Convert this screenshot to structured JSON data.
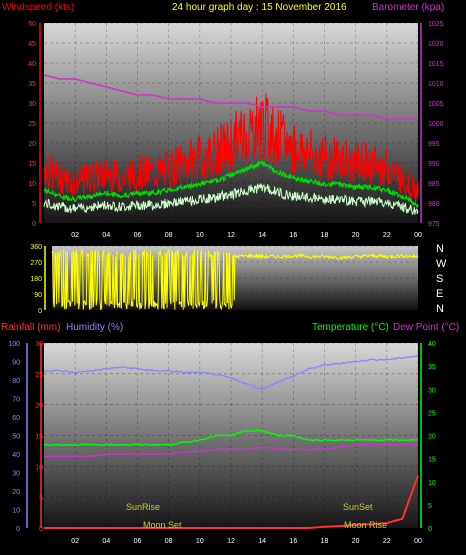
{
  "header": {
    "wind_label": "Windspeed (kts)",
    "title": "24 hour graph day : 15 November 2016",
    "baro_label": "Barometer (kpa)"
  },
  "colors": {
    "wind": "#ff0000",
    "gust_avg": "#00dd00",
    "wind_light": "#ccffcc",
    "baro": "#cc33cc",
    "direction": "#ffff00",
    "rain": "#ff3030",
    "humidity": "#8888ff",
    "temperature": "#00ff00",
    "dewpoint": "#cc33cc",
    "sunmoon": "#cccc33"
  },
  "x_ticks": [
    "02",
    "04",
    "06",
    "08",
    "10",
    "12",
    "14",
    "16",
    "18",
    "20",
    "22",
    "00"
  ],
  "chart_data": [
    {
      "type": "line",
      "title": "24 hour graph day : 15 November 2016",
      "y_left": {
        "label": "Windspeed (kts)",
        "ylim": [
          0,
          50
        ],
        "ticks": [
          0,
          5,
          10,
          15,
          20,
          25,
          30,
          35,
          40,
          45,
          50
        ]
      },
      "y_right": {
        "label": "Barometer (kpa)",
        "ylim": [
          975,
          1025
        ],
        "ticks": [
          975,
          980,
          985,
          990,
          995,
          1000,
          1005,
          1010,
          1015,
          1020,
          1025
        ]
      },
      "x": [
        0,
        1,
        2,
        3,
        4,
        5,
        6,
        7,
        8,
        9,
        10,
        11,
        12,
        13,
        14,
        15,
        16,
        17,
        18,
        19,
        20,
        21,
        22,
        23,
        24
      ],
      "series": [
        {
          "name": "Windspeed (kts)",
          "values": [
            11,
            9,
            8,
            9,
            10,
            9,
            10,
            10,
            11,
            12,
            13,
            14,
            16,
            18,
            20,
            17,
            15,
            14,
            13,
            13,
            12,
            12,
            11,
            9,
            6
          ]
        },
        {
          "name": "Barometer (kpa)",
          "values": [
            1012,
            1011,
            1011,
            1010,
            1009,
            1008,
            1007,
            1007,
            1006,
            1006,
            1006,
            1005,
            1005,
            1005,
            1004,
            1004,
            1004,
            1003,
            1003,
            1002,
            1002,
            1002,
            1001,
            1001,
            1001
          ]
        }
      ]
    },
    {
      "type": "scatter",
      "title": "",
      "y_ticks": [
        0,
        90,
        180,
        270,
        360
      ],
      "compass": [
        "N",
        "W",
        "S",
        "E",
        "N"
      ],
      "ylim": [
        0,
        360
      ],
      "x": [
        0,
        1,
        2,
        3,
        4,
        5,
        6,
        7,
        8,
        9,
        10,
        11,
        12,
        13,
        14,
        15,
        16,
        17,
        18,
        19,
        20,
        21,
        22,
        23,
        24
      ],
      "series": [
        {
          "name": "Direction",
          "values": [
            300,
            40,
            320,
            60,
            330,
            30,
            310,
            80,
            300,
            20,
            290,
            300,
            300,
            305,
            300,
            300,
            305,
            300,
            300,
            295,
            300,
            305,
            300,
            305,
            300
          ]
        }
      ]
    },
    {
      "type": "line",
      "title": "",
      "y_left_outer": {
        "label": "Humidity (%)",
        "ylim": [
          0,
          100
        ],
        "ticks": [
          0,
          10,
          20,
          30,
          40,
          50,
          60,
          70,
          80,
          90,
          100
        ]
      },
      "y_left_inner": {
        "label": "Rainfall (mm)",
        "ylim": [
          0,
          30
        ],
        "ticks": [
          0,
          5,
          10,
          15,
          20,
          25,
          30
        ]
      },
      "y_right": {
        "label": "Temperature (°C)",
        "ylim": [
          0,
          40
        ],
        "ticks": [
          0,
          5,
          10,
          15,
          20,
          25,
          30,
          35,
          40
        ]
      },
      "right_labels": {
        "temperature": "Temperature (°C)",
        "dewpoint": "Dew Point (°C)"
      },
      "x": [
        0,
        1,
        2,
        3,
        4,
        5,
        6,
        7,
        8,
        9,
        10,
        11,
        12,
        13,
        14,
        15,
        16,
        17,
        18,
        19,
        20,
        21,
        22,
        23,
        24
      ],
      "series": [
        {
          "name": "Humidity (%)",
          "values": [
            85,
            85,
            84,
            85,
            86,
            87,
            86,
            85,
            85,
            84,
            84,
            83,
            81,
            78,
            75,
            79,
            82,
            86,
            88,
            89,
            90,
            91,
            91,
            92,
            93
          ]
        },
        {
          "name": "Temperature (°C)",
          "values": [
            18,
            18,
            18,
            18,
            18,
            18,
            18,
            18,
            18,
            18.5,
            19,
            20,
            20,
            21,
            21,
            20,
            20,
            19,
            19,
            19,
            19,
            19,
            19,
            19,
            19
          ]
        },
        {
          "name": "Dew Point (°C)",
          "values": [
            15.5,
            15.5,
            15.5,
            15.5,
            16,
            16,
            16,
            16,
            16,
            16.5,
            16.5,
            17,
            17,
            17,
            17.5,
            17,
            17,
            17,
            17,
            17.5,
            18,
            18,
            18,
            18,
            18
          ]
        },
        {
          "name": "Rainfall (mm)",
          "values": [
            0,
            0,
            0,
            0,
            0,
            0,
            0,
            0,
            0,
            0,
            0,
            0,
            0,
            0,
            0,
            0,
            0,
            0,
            0.2,
            0.3,
            0.5,
            0.6,
            0.8,
            1.5,
            8.5
          ]
        }
      ],
      "annotations": [
        "SunRise",
        "Moon Set",
        "SunSet",
        "Moon Rise"
      ]
    }
  ],
  "panel3_labels": {
    "rain": "Rainfall (mm)",
    "humidity": "Humidity (%)",
    "temperature": "Temperature (°C)",
    "dewpoint": "Dew Point (°C)",
    "sunrise": "SunRise",
    "moonset": "Moon Set",
    "sunset": "SunSet",
    "moonrise": "Moon Rise"
  }
}
